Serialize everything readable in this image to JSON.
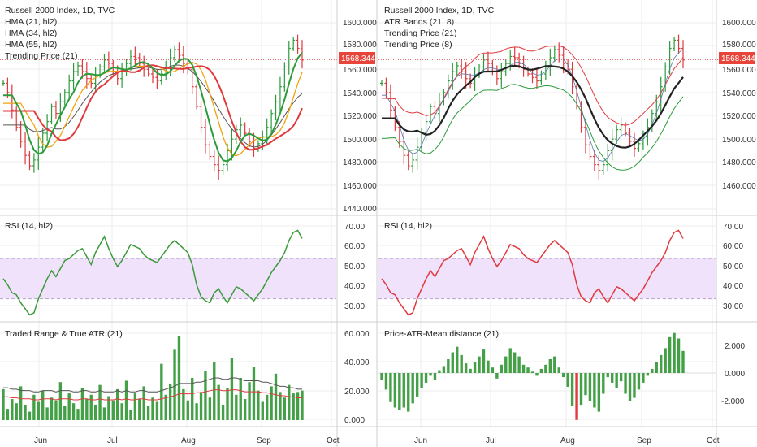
{
  "colors": {
    "grid": "#ececec",
    "separator": "#cfcfcf",
    "bull": "#2c9c3b",
    "bear": "#e0393e",
    "price_label_bg": "#e8443a",
    "rsi_band_fill": "#f1e2fb",
    "rsi_band_line": "#b9a3c9",
    "hma21": "#2c9c3b",
    "hma34": "#f2a20d",
    "hma55": "#e0393e",
    "trend_gray": "#555555",
    "atr_upper": "#e0393e",
    "atr_lower": "#2c9c3b",
    "atr_mid": "#222222",
    "rsi_left": "#3a9a3a",
    "rsi_right": "#e0393e",
    "volume": "#43a047",
    "atr_line": "#555555",
    "atr_line2": "#e0393e"
  },
  "x_axis": {
    "left_ticks": [
      "Jun",
      "Jul",
      "Aug",
      "Sep",
      "Oct"
    ],
    "right_ticks": [
      "Jun",
      "Jul",
      "Aug",
      "Sep",
      "Oct"
    ]
  },
  "left_chart": {
    "legend": [
      "Russell 2000 Index, 1D, TVC",
      "HMA (21, hl2)",
      "HMA (34, hl2)",
      "HMA (55, hl2)",
      "Trending Price (21)"
    ],
    "price_ticks": [
      "1600.000",
      "1580.000",
      "1560.000",
      "1540.000",
      "1520.000",
      "1500.000",
      "1480.000",
      "1460.000",
      "1440.000"
    ],
    "last_price": "1568.344",
    "rsi_label": "RSI (14, hl2)",
    "rsi_ticks": [
      "70.00",
      "60.00",
      "50.00",
      "40.00",
      "30.00"
    ],
    "vol_label": "Traded Range & True ATR (21)",
    "vol_ticks": [
      "60.000",
      "40.000",
      "20.000",
      "0.000"
    ]
  },
  "right_chart": {
    "legend": [
      "Russell 2000 Index, 1D, TVC",
      "ATR Bands (21, 8)",
      "Trending Price (21)",
      "Trending Price (8)"
    ],
    "price_ticks": [
      "1600.000",
      "1580.000",
      "1560.000",
      "1540.000",
      "1520.000",
      "1500.000",
      "1480.000",
      "1460.000"
    ],
    "last_price": "1568.344",
    "rsi_label": "RSI (14, hl2)",
    "rsi_ticks": [
      "70.00",
      "60.00",
      "50.00",
      "40.00",
      "30.00"
    ],
    "dist_label": "Price-ATR-Mean distance (21)",
    "dist_ticks": [
      "2.000",
      "0.000",
      "-2.000"
    ]
  },
  "chart_data": {
    "type": "line",
    "title": "Russell 2000 Index, 1D, TVC",
    "price_ylim": [
      1440,
      1600
    ],
    "last_close": 1568.344,
    "price_path": [
      1548,
      1540,
      1525,
      1510,
      1498,
      1486,
      1477,
      1482,
      1493,
      1505,
      1515,
      1528,
      1522,
      1532,
      1540,
      1550,
      1558,
      1563,
      1558,
      1552,
      1548,
      1555,
      1562,
      1568,
      1565,
      1558,
      1552,
      1558,
      1565,
      1571,
      1570,
      1565,
      1560,
      1556,
      1553,
      1550,
      1556,
      1562,
      1570,
      1577,
      1572,
      1565,
      1560,
      1545,
      1528,
      1510,
      1495,
      1485,
      1478,
      1473,
      1478,
      1490,
      1500,
      1508,
      1512,
      1505,
      1498,
      1492,
      1496,
      1502,
      1510,
      1522,
      1532,
      1545,
      1562,
      1578,
      1585,
      1578,
      1568
    ],
    "rsi_ylim": [
      25,
      72
    ],
    "rsi_band": [
      35,
      55
    ],
    "rsi_values": [
      45,
      42,
      38,
      37,
      33,
      30,
      27,
      28,
      35,
      40,
      45,
      49,
      46,
      50,
      54,
      55,
      57,
      59,
      60,
      56,
      52,
      58,
      62,
      66,
      60,
      55,
      51,
      54,
      58,
      62,
      61,
      60,
      57,
      55,
      54,
      53,
      56,
      59,
      62,
      64,
      62,
      60,
      58,
      52,
      42,
      36,
      34,
      33,
      38,
      40,
      36,
      33,
      37,
      41,
      40,
      38,
      36,
      34,
      37,
      40,
      44,
      48,
      51,
      54,
      58,
      64,
      68,
      69,
      65
    ],
    "vol_ylim": [
      0,
      62
    ],
    "vol_values": [
      22,
      8,
      15,
      12,
      24,
      11,
      6,
      18,
      13,
      21,
      9,
      16,
      14,
      27,
      10,
      19,
      12,
      8,
      23,
      15,
      18,
      11,
      25,
      9,
      17,
      14,
      22,
      12,
      28,
      7,
      19,
      15,
      24,
      10,
      16,
      13,
      40,
      18,
      26,
      50,
      60,
      22,
      14,
      30,
      12,
      20,
      35,
      16,
      41,
      25,
      11,
      23,
      44,
      18,
      30,
      15,
      27,
      38,
      21,
      13,
      18,
      24,
      33,
      20,
      16,
      25,
      19,
      20,
      21
    ],
    "atr_values": [
      23,
      23,
      22,
      22,
      21,
      21,
      21,
      20,
      20,
      21,
      21,
      21,
      20,
      21,
      21,
      21,
      20,
      20,
      21,
      21,
      20,
      20,
      21,
      20,
      20,
      20,
      21,
      20,
      21,
      20,
      20,
      21,
      21,
      20,
      20,
      20,
      21,
      22,
      23,
      24,
      26,
      26,
      26,
      26,
      27,
      27,
      28,
      29,
      30,
      30,
      29,
      29,
      30,
      30,
      29,
      28,
      28,
      28,
      28,
      27,
      27,
      26,
      25,
      24,
      24,
      23,
      23,
      22,
      22
    ],
    "dist_ylim": [
      -3.5,
      3.2
    ],
    "dist_values": [
      -0.5,
      -1.2,
      -2.1,
      -2.5,
      -2.7,
      -2.5,
      -2.8,
      -2.2,
      -1.7,
      -1.1,
      -0.7,
      -0.2,
      -0.5,
      0.2,
      0.5,
      1.0,
      1.5,
      1.9,
      1.3,
      0.7,
      0.3,
      0.8,
      1.2,
      1.7,
      0.9,
      0.4,
      -0.4,
      0.6,
      1.2,
      1.8,
      1.5,
      1.2,
      0.6,
      0.4,
      0.1,
      -0.2,
      0.3,
      0.6,
      1.0,
      1.2,
      0.4,
      -0.3,
      -1.0,
      -2.4,
      -3.4,
      -2.3,
      -1.6,
      -2.0,
      -2.5,
      -2.8,
      -1.5,
      -0.3,
      -0.7,
      -1.1,
      -0.6,
      -1.5,
      -2.0,
      -1.8,
      -1.2,
      -0.7,
      -0.2,
      0.3,
      0.8,
      1.3,
      1.8,
      2.6,
      2.9,
      2.5,
      1.6
    ]
  }
}
